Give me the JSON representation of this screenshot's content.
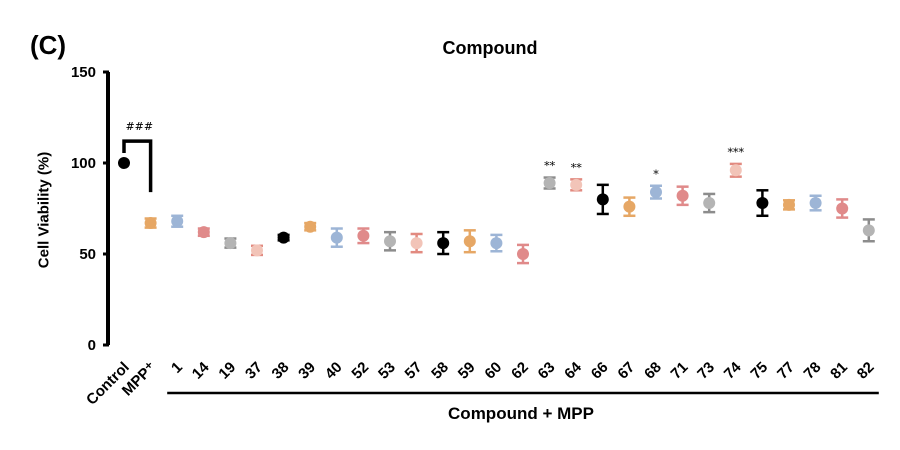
{
  "panel_label": "(C)",
  "chart_data": {
    "type": "scatter",
    "title": "Compound",
    "ylabel": "Cell Viability (%)",
    "xlabel_group": "Compound + MPP",
    "ylim": [
      0,
      150
    ],
    "yticks": [
      0,
      50,
      100,
      150
    ],
    "grid": false,
    "control_significance": "###",
    "points": [
      {
        "label": "Control",
        "value": 100,
        "err": 0,
        "color": "#000000",
        "sig": ""
      },
      {
        "label": "MPP⁺",
        "value": 67,
        "err": 2.5,
        "color": "#e6a765",
        "sig": ""
      },
      {
        "label": "1",
        "value": 68,
        "err": 3,
        "color": "#9db5d6",
        "sig": ""
      },
      {
        "label": "14",
        "value": 62,
        "err": 2,
        "color": "#e08a8a",
        "sig": ""
      },
      {
        "label": "19",
        "value": 56,
        "err": 2.5,
        "color": "#b4b4b4",
        "sig": ""
      },
      {
        "label": "37",
        "value": 52,
        "err": 2.5,
        "color": "#f2c4b8",
        "sig": ""
      },
      {
        "label": "38",
        "value": 59,
        "err": 1.5,
        "color": "#000000",
        "sig": ""
      },
      {
        "label": "39",
        "value": 65,
        "err": 2,
        "color": "#e6a765",
        "sig": ""
      },
      {
        "label": "40",
        "value": 59,
        "err": 5,
        "color": "#9db5d6",
        "sig": ""
      },
      {
        "label": "52",
        "value": 60,
        "err": 4,
        "color": "#e08a8a",
        "sig": ""
      },
      {
        "label": "53",
        "value": 57,
        "err": 5,
        "color": "#b4b4b4",
        "sig": ""
      },
      {
        "label": "57",
        "value": 56,
        "err": 5,
        "color": "#f2c4b8",
        "sig": ""
      },
      {
        "label": "58",
        "value": 56,
        "err": 6,
        "color": "#000000",
        "sig": ""
      },
      {
        "label": "59",
        "value": 57,
        "err": 6,
        "color": "#e6a765",
        "sig": ""
      },
      {
        "label": "60",
        "value": 56,
        "err": 4.5,
        "color": "#9db5d6",
        "sig": ""
      },
      {
        "label": "62",
        "value": 50,
        "err": 5,
        "color": "#e08a8a",
        "sig": ""
      },
      {
        "label": "63",
        "value": 89,
        "err": 3,
        "color": "#b4b4b4",
        "sig": "**"
      },
      {
        "label": "64",
        "value": 88,
        "err": 3,
        "color": "#f2c4b8",
        "sig": "**"
      },
      {
        "label": "66",
        "value": 80,
        "err": 8,
        "color": "#000000",
        "sig": ""
      },
      {
        "label": "67",
        "value": 76,
        "err": 5,
        "color": "#e6a765",
        "sig": ""
      },
      {
        "label": "68",
        "value": 84,
        "err": 3.5,
        "color": "#9db5d6",
        "sig": "*"
      },
      {
        "label": "71",
        "value": 82,
        "err": 5,
        "color": "#e08a8a",
        "sig": ""
      },
      {
        "label": "73",
        "value": 78,
        "err": 5,
        "color": "#b4b4b4",
        "sig": ""
      },
      {
        "label": "74",
        "value": 96,
        "err": 3.5,
        "color": "#f2c4b8",
        "sig": "***"
      },
      {
        "label": "75",
        "value": 78,
        "err": 7,
        "color": "#000000",
        "sig": ""
      },
      {
        "label": "77",
        "value": 77,
        "err": 2.5,
        "color": "#e6a765",
        "sig": ""
      },
      {
        "label": "78",
        "value": 78,
        "err": 4,
        "color": "#9db5d6",
        "sig": ""
      },
      {
        "label": "81",
        "value": 75,
        "err": 5,
        "color": "#e08a8a",
        "sig": ""
      },
      {
        "label": "82",
        "value": 63,
        "err": 6,
        "color": "#b4b4b4",
        "sig": ""
      }
    ]
  }
}
